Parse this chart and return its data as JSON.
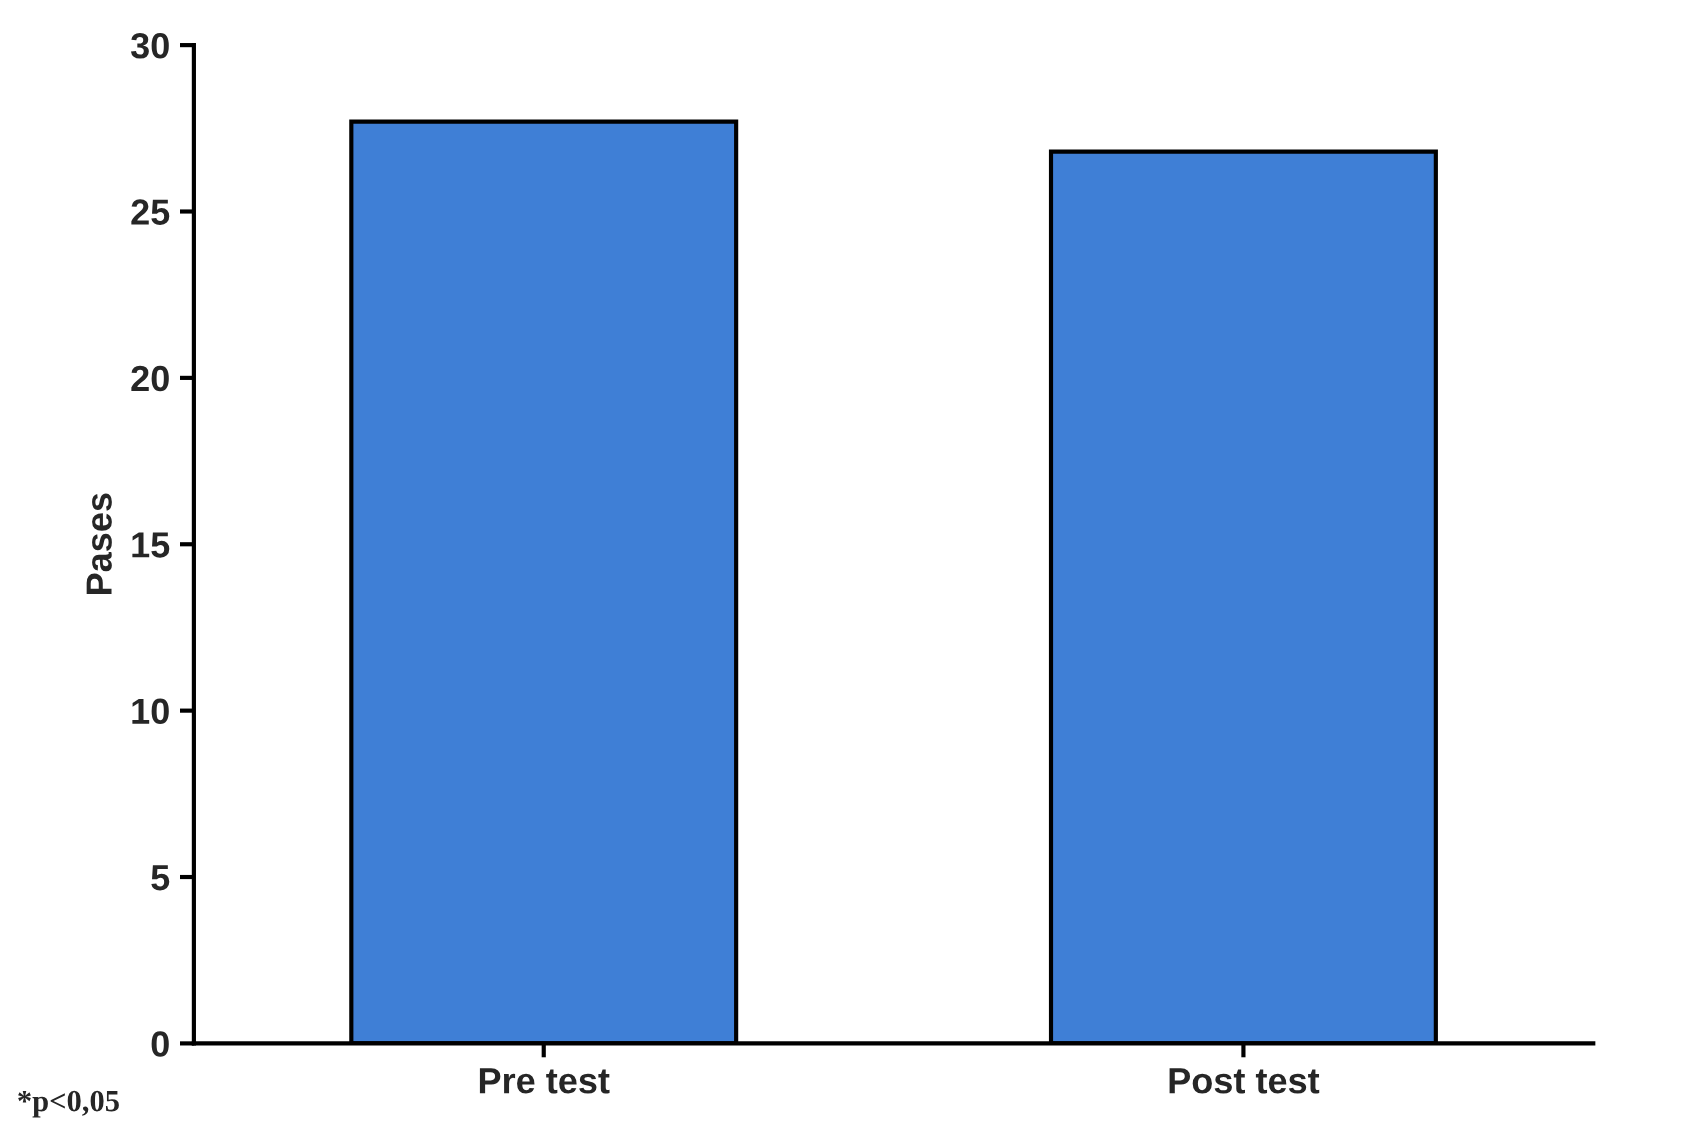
{
  "chart_data": {
    "type": "bar",
    "ylabel": "Pases",
    "categories": [
      "Pre test",
      "Post test"
    ],
    "values": [
      27.7,
      26.8
    ],
    "color": "#3f7fd6",
    "ylim": [
      0,
      30
    ],
    "yticks": [
      0,
      5,
      10,
      15,
      20,
      25,
      30
    ],
    "grid": false,
    "annotations": [
      "*p<0,05"
    ]
  }
}
